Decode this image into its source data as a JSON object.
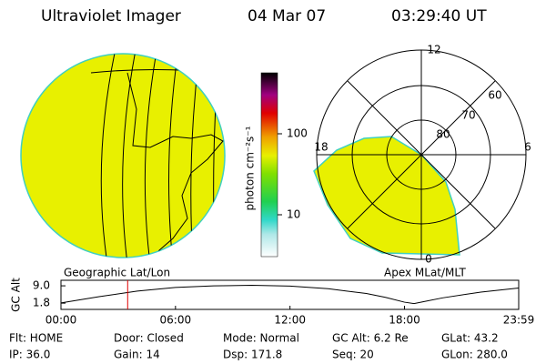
{
  "header": {
    "instrument": "Ultraviolet Imager",
    "date": "04 Mar 07",
    "time": "03:29:40 UT"
  },
  "colorbar": {
    "label": "photon cm⁻²s⁻¹",
    "ticks": [
      "100",
      "10"
    ]
  },
  "polar_panel": {
    "mlt_labels": [
      "12",
      "18",
      "6",
      "0"
    ],
    "lat_labels": [
      "80",
      "70",
      "60"
    ]
  },
  "chart_data": {
    "type": "line",
    "left_label": "Geographic Lat/Lon",
    "right_label": "Apex MLat/MLT",
    "ylabel": "GC Alt",
    "x": [
      0,
      2,
      4,
      6,
      8,
      10,
      12,
      14,
      16,
      17,
      18,
      18.5,
      19,
      20,
      22,
      23.983
    ],
    "values": [
      1.9,
      4.5,
      6.8,
      8.3,
      9.0,
      9.2,
      8.9,
      7.8,
      5.8,
      4.2,
      2.2,
      1.6,
      2.4,
      4.0,
      6.4,
      8.1
    ],
    "color": "#000000",
    "marker_x": 3.494,
    "marker_color": "#e00000",
    "xlim": [
      0,
      23.983
    ],
    "ylim": [
      -0.8,
      11.3
    ],
    "xticks": [
      {
        "value": 0,
        "label": "00:00"
      },
      {
        "value": 6,
        "label": "06:00"
      },
      {
        "value": 12,
        "label": "12:00"
      },
      {
        "value": 18,
        "label": "18:00"
      },
      {
        "value": 23.983,
        "label": "23:59"
      }
    ],
    "yticks": [
      {
        "value": 9,
        "label": "9.0"
      },
      1.8
    ]
  },
  "footer": [
    [
      "Flt: HOME",
      "Door: Closed",
      "Mode: Normal",
      "GC Alt: 6.2 Re",
      "GLat: 43.2"
    ],
    [
      "IP: 36.0",
      "Gain: 14",
      "Dsp: 171.8",
      "Seq: 20",
      "GLon: 280.0"
    ]
  ]
}
